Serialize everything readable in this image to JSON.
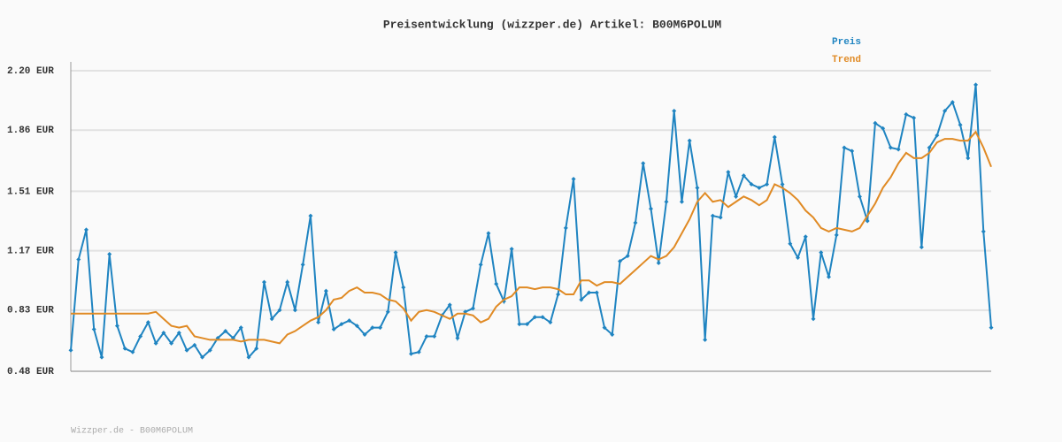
{
  "chart_data": {
    "type": "line",
    "title": "Preisentwicklung (wizzper.de) Artikel: B00M6POLUM",
    "footer": "Wizzper.de - B00M6POLUM",
    "ylim": [
      0.48,
      2.2
    ],
    "yticks": [
      {
        "value": 0.48,
        "label": "0.48 EUR"
      },
      {
        "value": 0.83,
        "label": "0.83 EUR"
      },
      {
        "value": 1.17,
        "label": "1.17 EUR"
      },
      {
        "value": 1.51,
        "label": "1.51 EUR"
      },
      {
        "value": 1.86,
        "label": "1.86 EUR"
      },
      {
        "value": 2.2,
        "label": "2.20 EUR"
      }
    ],
    "grid": true,
    "legend": "top-right",
    "series": [
      {
        "name": "Preis",
        "color": "#1f84c1",
        "markers": true,
        "values": [
          0.6,
          1.12,
          1.29,
          0.72,
          0.56,
          1.15,
          0.74,
          0.61,
          0.59,
          0.68,
          0.76,
          0.64,
          0.7,
          0.64,
          0.7,
          0.6,
          0.63,
          0.56,
          0.6,
          0.67,
          0.71,
          0.67,
          0.73,
          0.56,
          0.61,
          0.99,
          0.78,
          0.83,
          0.99,
          0.83,
          1.09,
          1.37,
          0.76,
          0.94,
          0.72,
          0.75,
          0.77,
          0.74,
          0.69,
          0.73,
          0.73,
          0.82,
          1.16,
          0.96,
          0.58,
          0.59,
          0.68,
          0.68,
          0.8,
          0.86,
          0.67,
          0.82,
          0.84,
          1.09,
          1.27,
          0.98,
          0.88,
          1.18,
          0.75,
          0.75,
          0.79,
          0.79,
          0.76,
          0.92,
          1.3,
          1.58,
          0.89,
          0.93,
          0.93,
          0.73,
          0.69,
          1.11,
          1.14,
          1.33,
          1.67,
          1.41,
          1.1,
          1.45,
          1.97,
          1.45,
          1.8,
          1.53,
          0.66,
          1.37,
          1.36,
          1.62,
          1.48,
          1.6,
          1.55,
          1.53,
          1.55,
          1.82,
          1.55,
          1.21,
          1.13,
          1.25,
          0.78,
          1.16,
          1.02,
          1.26,
          1.76,
          1.74,
          1.48,
          1.34,
          1.9,
          1.87,
          1.76,
          1.75,
          1.95,
          1.93,
          1.19,
          1.76,
          1.83,
          1.97,
          2.02,
          1.89,
          1.7,
          2.12,
          1.28,
          0.73
        ]
      },
      {
        "name": "Trend",
        "color": "#e08a24",
        "markers": false,
        "values": [
          0.81,
          0.81,
          0.81,
          0.81,
          0.81,
          0.81,
          0.81,
          0.81,
          0.81,
          0.81,
          0.81,
          0.82,
          0.78,
          0.74,
          0.73,
          0.74,
          0.68,
          0.67,
          0.66,
          0.66,
          0.66,
          0.66,
          0.65,
          0.66,
          0.66,
          0.66,
          0.65,
          0.64,
          0.69,
          0.71,
          0.74,
          0.77,
          0.79,
          0.83,
          0.89,
          0.9,
          0.94,
          0.96,
          0.93,
          0.93,
          0.92,
          0.89,
          0.88,
          0.84,
          0.77,
          0.82,
          0.83,
          0.82,
          0.8,
          0.78,
          0.81,
          0.81,
          0.8,
          0.76,
          0.78,
          0.85,
          0.89,
          0.91,
          0.96,
          0.96,
          0.95,
          0.96,
          0.96,
          0.95,
          0.92,
          0.92,
          1.0,
          1.0,
          0.97,
          0.99,
          0.99,
          0.98,
          1.02,
          1.06,
          1.1,
          1.14,
          1.12,
          1.14,
          1.19,
          1.27,
          1.35,
          1.45,
          1.5,
          1.45,
          1.46,
          1.42,
          1.45,
          1.48,
          1.46,
          1.43,
          1.46,
          1.55,
          1.53,
          1.5,
          1.46,
          1.4,
          1.36,
          1.3,
          1.28,
          1.3,
          1.29,
          1.28,
          1.3,
          1.37,
          1.44,
          1.53,
          1.59,
          1.67,
          1.73,
          1.7,
          1.7,
          1.73,
          1.79,
          1.81,
          1.81,
          1.8,
          1.8,
          1.85,
          1.76,
          1.65
        ]
      }
    ]
  }
}
